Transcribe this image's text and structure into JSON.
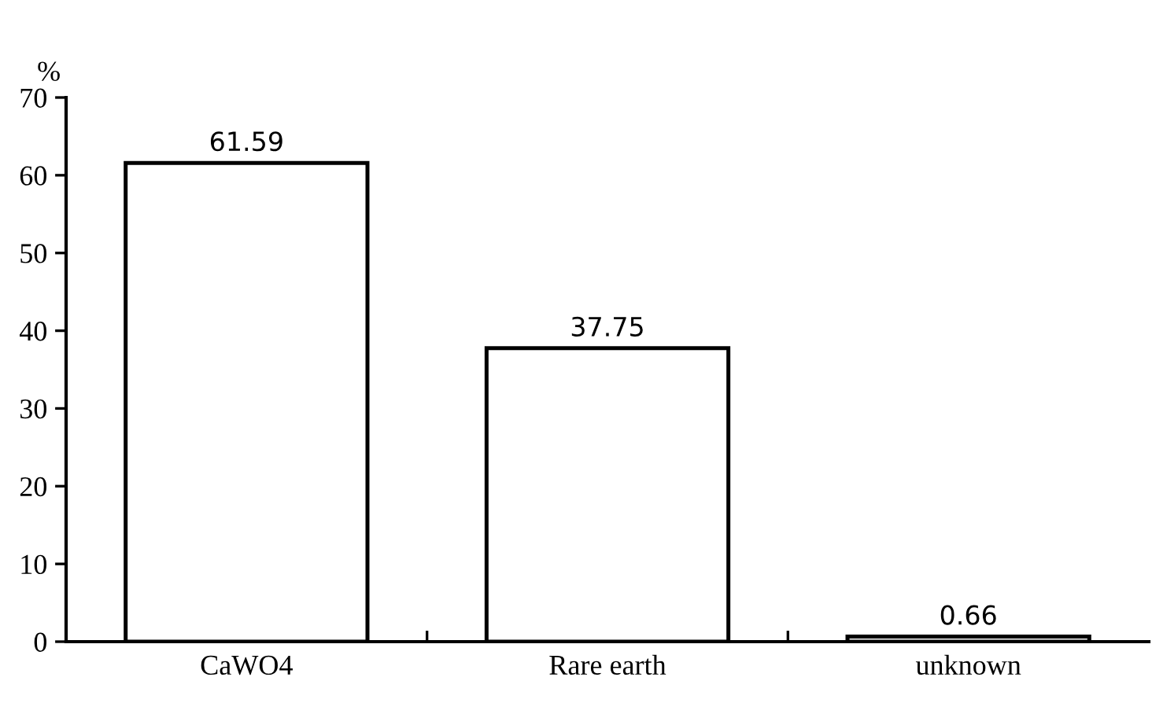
{
  "chart_data": {
    "type": "bar",
    "ylabel": "%",
    "categories": [
      "CaWO4",
      "Rare earth",
      "unknown"
    ],
    "values": [
      61.59,
      37.75,
      0.66
    ],
    "color": "#ffffff",
    "ylim": [
      0,
      70
    ],
    "yticks": [
      0,
      10,
      20,
      30,
      40,
      50,
      60,
      70
    ],
    "data_labels": true
  }
}
